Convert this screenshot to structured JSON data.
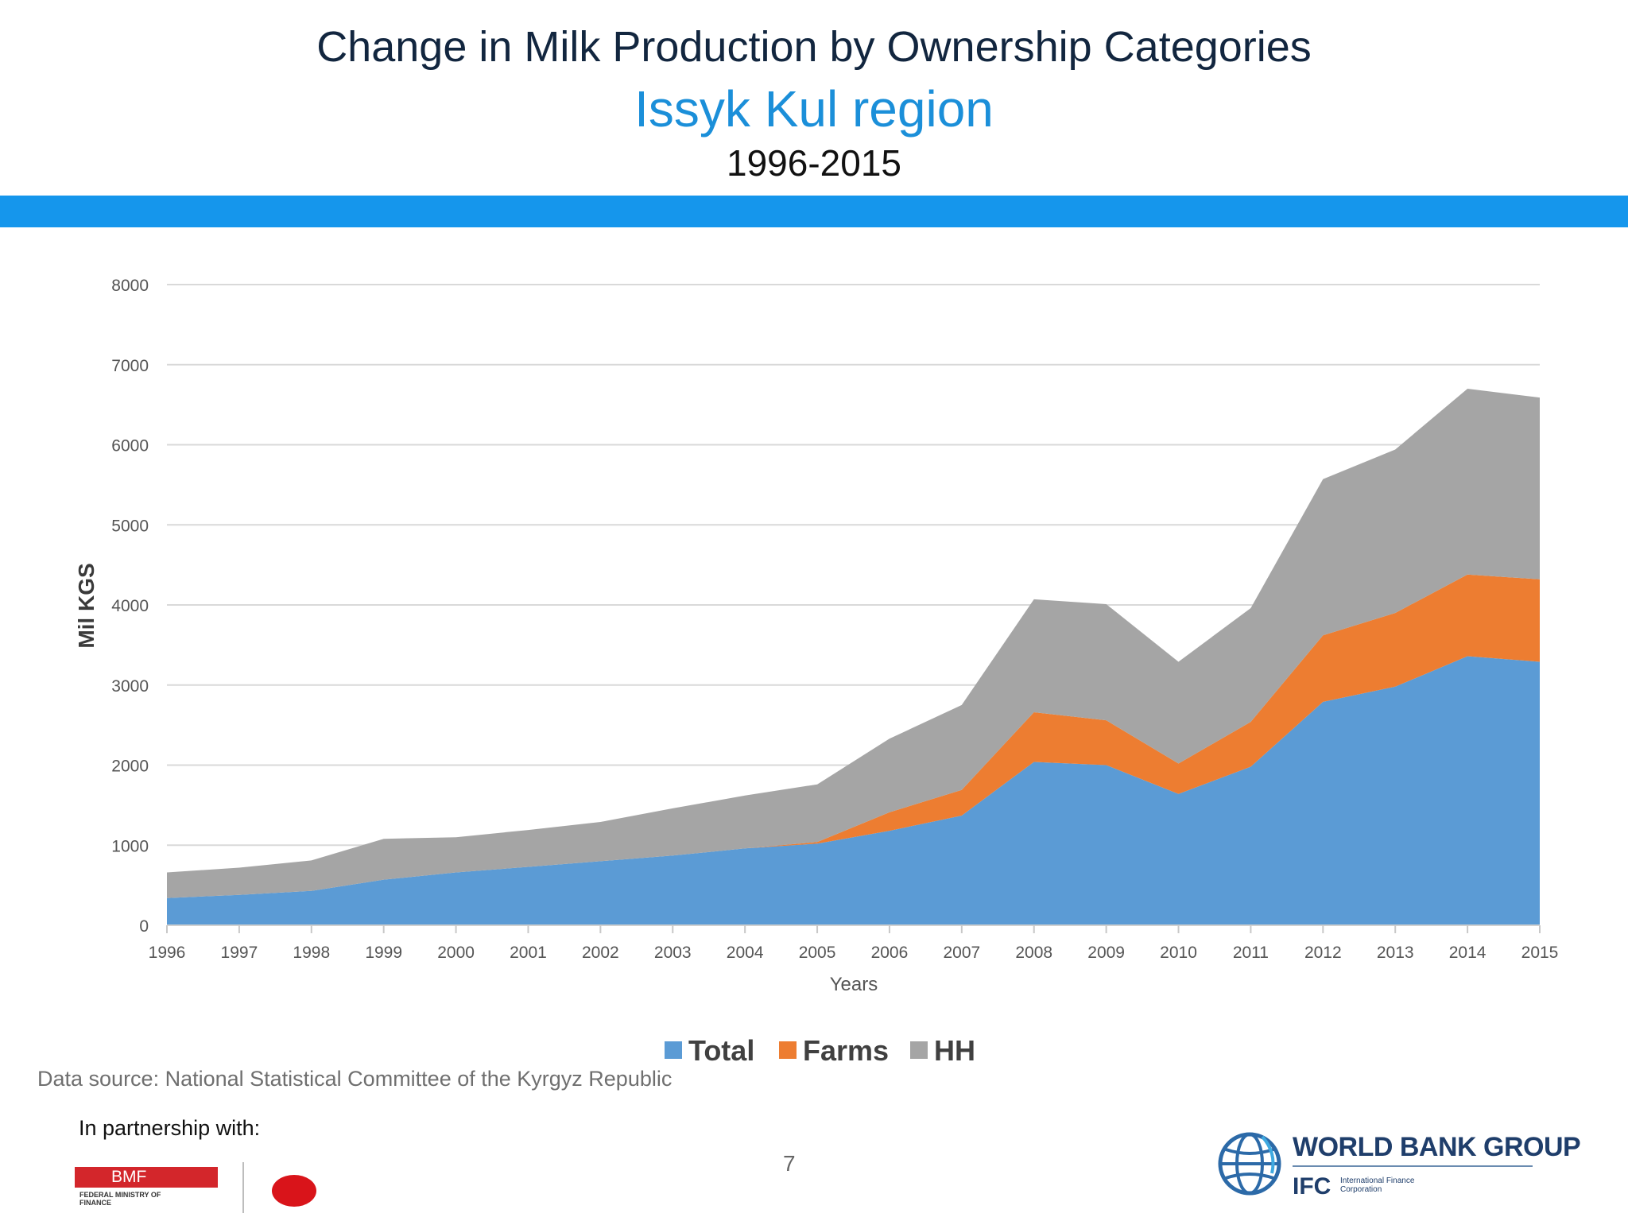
{
  "header": {
    "title": "Change in Milk Production by Ownership Categories",
    "subtitle": "Issyk Kul region",
    "period": "1996-2015"
  },
  "colors": {
    "band": "#1596ec",
    "total": "#5b9bd5",
    "farms": "#ed7d31",
    "hh": "#a5a5a5",
    "title": "#12263f",
    "subtitle": "#1b8fd9"
  },
  "chart_data": {
    "type": "area",
    "stacked": true,
    "title": "",
    "xlabel": "Years",
    "ylabel": "Mil KGS",
    "ylim": [
      0,
      8000
    ],
    "yticks": [
      0,
      1000,
      2000,
      3000,
      4000,
      5000,
      6000,
      7000,
      8000
    ],
    "grid": true,
    "legend_position": "bottom",
    "x": [
      "1996",
      "1997",
      "1998",
      "1999",
      "2000",
      "2001",
      "2002",
      "2003",
      "2004",
      "2005",
      "2006",
      "2007",
      "2008",
      "2009",
      "2010",
      "2011",
      "2012",
      "2013",
      "2014",
      "2015"
    ],
    "series": [
      {
        "name": "Total",
        "color": "#5b9bd5",
        "values": [
          340,
          380,
          430,
          570,
          660,
          730,
          800,
          870,
          960,
          1020,
          1180,
          1370,
          2040,
          2000,
          1640,
          1980,
          2790,
          2980,
          3360,
          3290
        ]
      },
      {
        "name": "Farms",
        "color": "#ed7d31",
        "values": [
          0,
          0,
          0,
          0,
          0,
          0,
          0,
          0,
          0,
          20,
          230,
          320,
          620,
          560,
          380,
          560,
          830,
          920,
          1020,
          1030
        ]
      },
      {
        "name": "HH",
        "color": "#a5a5a5",
        "values": [
          320,
          340,
          380,
          510,
          440,
          460,
          490,
          590,
          660,
          720,
          920,
          1060,
          1410,
          1450,
          1270,
          1420,
          1950,
          2040,
          2320,
          2270
        ]
      }
    ]
  },
  "footer": {
    "source": "Data source: National Statistical Committee of the Kyrgyz Republic",
    "partnership": "In partnership with:",
    "page_number": "7",
    "bmf_logo_text": "BMF",
    "bmf_subtext": "FEDERAL MINISTRY OF FINANCE",
    "wbg_name": "WORLD BANK GROUP",
    "ifc_name": "IFC",
    "ifc_subtext": "International Finance Corporation"
  }
}
